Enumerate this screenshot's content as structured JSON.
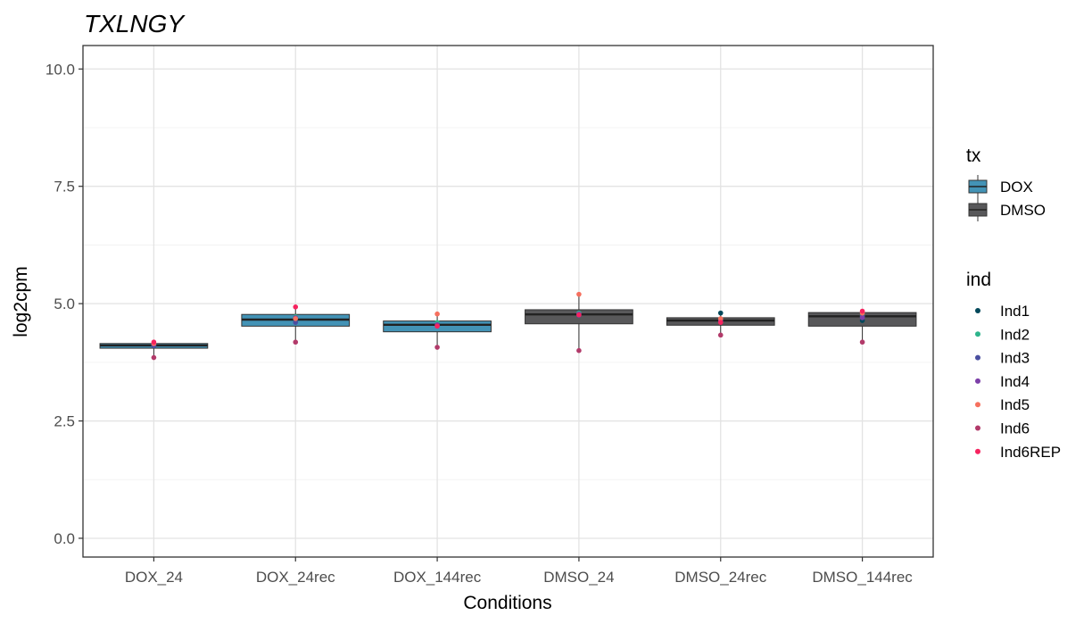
{
  "chart_data": {
    "type": "boxplot",
    "title": "TXLNGY",
    "xlabel": "Conditions",
    "ylabel": "log2cpm",
    "ylim": [
      -0.4,
      10.5
    ],
    "yticks": [
      "0.0",
      "2.5",
      "5.0",
      "7.5",
      "10.0"
    ],
    "ytick_values": [
      0,
      2.5,
      5,
      7.5,
      10
    ],
    "grid": true,
    "legend_position": "right",
    "categories": [
      "DOX_24",
      "DOX_24rec",
      "DOX_144rec",
      "DMSO_24",
      "DMSO_24rec",
      "DMSO_144rec"
    ],
    "boxes": [
      {
        "category": "DOX_24",
        "tx": "DOX",
        "whisker_low": 3.85,
        "q1": 4.05,
        "median": 4.11,
        "q3": 4.15,
        "whisker_high": 4.18
      },
      {
        "category": "DOX_24rec",
        "tx": "DOX",
        "whisker_low": 4.18,
        "q1": 4.52,
        "median": 4.66,
        "q3": 4.77,
        "whisker_high": 4.93
      },
      {
        "category": "DOX_144rec",
        "tx": "DOX",
        "whisker_low": 4.07,
        "q1": 4.4,
        "median": 4.55,
        "q3": 4.63,
        "whisker_high": 4.78
      },
      {
        "category": "DMSO_24",
        "tx": "DMSO",
        "whisker_low": 4.0,
        "q1": 4.57,
        "median": 4.77,
        "q3": 4.87,
        "whisker_high": 5.2
      },
      {
        "category": "DMSO_24rec",
        "tx": "DMSO",
        "whisker_low": 4.33,
        "q1": 4.54,
        "median": 4.64,
        "q3": 4.7,
        "whisker_high": 4.8
      },
      {
        "category": "DMSO_144rec",
        "tx": "DMSO",
        "whisker_low": 4.18,
        "q1": 4.52,
        "median": 4.73,
        "q3": 4.81,
        "whisker_high": 4.84
      }
    ],
    "points": [
      {
        "category": "DOX_24",
        "ind": "Ind1",
        "y": 4.13
      },
      {
        "category": "DOX_24",
        "ind": "Ind2",
        "y": 4.12
      },
      {
        "category": "DOX_24",
        "ind": "Ind3",
        "y": 4.1
      },
      {
        "category": "DOX_24",
        "ind": "Ind4",
        "y": 4.14
      },
      {
        "category": "DOX_24",
        "ind": "Ind5",
        "y": 4.15
      },
      {
        "category": "DOX_24",
        "ind": "Ind6",
        "y": 3.85
      },
      {
        "category": "DOX_24",
        "ind": "Ind6REP",
        "y": 4.18
      },
      {
        "category": "DOX_24rec",
        "ind": "Ind1",
        "y": 4.66
      },
      {
        "category": "DOX_24rec",
        "ind": "Ind2",
        "y": 4.72
      },
      {
        "category": "DOX_24rec",
        "ind": "Ind3",
        "y": 4.6
      },
      {
        "category": "DOX_24rec",
        "ind": "Ind4",
        "y": 4.7
      },
      {
        "category": "DOX_24rec",
        "ind": "Ind5",
        "y": 4.68
      },
      {
        "category": "DOX_24rec",
        "ind": "Ind6",
        "y": 4.18
      },
      {
        "category": "DOX_24rec",
        "ind": "Ind6REP",
        "y": 4.93
      },
      {
        "category": "DOX_144rec",
        "ind": "Ind1",
        "y": 4.57
      },
      {
        "category": "DOX_144rec",
        "ind": "Ind2",
        "y": 4.6
      },
      {
        "category": "DOX_144rec",
        "ind": "Ind3",
        "y": 4.53
      },
      {
        "category": "DOX_144rec",
        "ind": "Ind4",
        "y": 4.55
      },
      {
        "category": "DOX_144rec",
        "ind": "Ind5",
        "y": 4.78
      },
      {
        "category": "DOX_144rec",
        "ind": "Ind6",
        "y": 4.07
      },
      {
        "category": "DOX_144rec",
        "ind": "Ind6REP",
        "y": 4.52
      },
      {
        "category": "DMSO_24",
        "ind": "Ind1",
        "y": 4.77
      },
      {
        "category": "DMSO_24",
        "ind": "Ind2",
        "y": 4.8
      },
      {
        "category": "DMSO_24",
        "ind": "Ind3",
        "y": 4.75
      },
      {
        "category": "DMSO_24",
        "ind": "Ind4",
        "y": 4.78
      },
      {
        "category": "DMSO_24",
        "ind": "Ind5",
        "y": 5.2
      },
      {
        "category": "DMSO_24",
        "ind": "Ind6",
        "y": 4.0
      },
      {
        "category": "DMSO_24",
        "ind": "Ind6REP",
        "y": 4.76
      },
      {
        "category": "DMSO_24rec",
        "ind": "Ind1",
        "y": 4.8
      },
      {
        "category": "DMSO_24rec",
        "ind": "Ind2",
        "y": 4.65
      },
      {
        "category": "DMSO_24rec",
        "ind": "Ind3",
        "y": 4.62
      },
      {
        "category": "DMSO_24rec",
        "ind": "Ind4",
        "y": 4.64
      },
      {
        "category": "DMSO_24rec",
        "ind": "Ind5",
        "y": 4.68
      },
      {
        "category": "DMSO_24rec",
        "ind": "Ind6",
        "y": 4.33
      },
      {
        "category": "DMSO_24rec",
        "ind": "Ind6REP",
        "y": 4.6
      },
      {
        "category": "DMSO_144rec",
        "ind": "Ind1",
        "y": 4.64
      },
      {
        "category": "DMSO_144rec",
        "ind": "Ind2",
        "y": 4.74
      },
      {
        "category": "DMSO_144rec",
        "ind": "Ind3",
        "y": 4.72
      },
      {
        "category": "DMSO_144rec",
        "ind": "Ind4",
        "y": 4.7
      },
      {
        "category": "DMSO_144rec",
        "ind": "Ind5",
        "y": 4.8
      },
      {
        "category": "DMSO_144rec",
        "ind": "Ind6",
        "y": 4.18
      },
      {
        "category": "DMSO_144rec",
        "ind": "Ind6REP",
        "y": 4.84
      }
    ],
    "fill_legend": {
      "title": "tx",
      "entries": [
        {
          "label": "DOX",
          "color": "#4393b6"
        },
        {
          "label": "DMSO",
          "color": "#58585a"
        }
      ]
    },
    "color_legend": {
      "title": "ind",
      "entries": [
        {
          "label": "Ind1",
          "color": "#03485a"
        },
        {
          "label": "Ind2",
          "color": "#2eb48c"
        },
        {
          "label": "Ind3",
          "color": "#4a4fa0"
        },
        {
          "label": "Ind4",
          "color": "#7c3fa8"
        },
        {
          "label": "Ind5",
          "color": "#f6705e"
        },
        {
          "label": "Ind6",
          "color": "#b23a6a"
        },
        {
          "label": "Ind6REP",
          "color": "#f6235f"
        }
      ]
    }
  }
}
